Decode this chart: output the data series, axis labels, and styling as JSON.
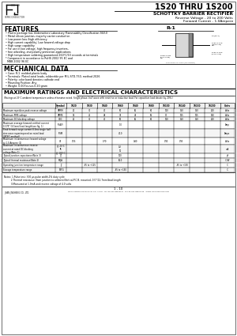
{
  "title": "1S20 THRU 1S200",
  "subtitle": "SCHOTTKY BARRIER RECTIFIER",
  "subtitle2": "Reverse Voltage - 20 to 200 Volts",
  "subtitle3": "Forward Current - 1.0Ampere",
  "logo_text": "SEMICONDUCTOR",
  "features_title": "FEATURES",
  "features": [
    "Plastic package has Underwriters Laboratory Flammability Classification 94V-0",
    "Metal silicon junction, majority carrier conduction",
    "Low power loss /high efficiency",
    "High current capability; Low forward voltage drop",
    "High surge capability",
    "For use in low voltage; high frequency inverters,",
    "free wheeling, and polarity protection applications",
    "High temperature soldering guaranteed 260°C/10 seconds at terminals",
    "* Component in accordance to RoHS 2002 95 EC and",
    "MBB 2002 96 EC"
  ],
  "mech_title": "MECHANICAL DATA",
  "mech": [
    "Case: R-1  molded plastic body",
    "Terminals: Plated axial leads, solderable per MIL-STD-750, method 2026",
    "Polarity: color band denotes cathode end",
    "Mounting Position: Any",
    "Weight: 0.007ounce,0.20 gram"
  ],
  "max_title": "MAXIMUM RATINGS AND ELECTRICAL CHARACTERISTICS",
  "max_note": "(Ratings at 25°C ambient temperature unless otherwise noted. Single phase, half wave with resistive or inductive load. For capacitive load derate by 20%.)",
  "table_headers": [
    "",
    "Symbol",
    "1S20",
    "1S30",
    "1S40",
    "1S60",
    "1S40",
    "1S80",
    "1S100",
    "1S140",
    "1S150",
    "1S200",
    "Units"
  ],
  "notes": [
    "Notes: 1.Pulse test: 300 μs pulse width,1% duty cycle",
    "          2.Thermal resistance (from junction to ambient)Vertical P.C.B. mounted, 0.5\"(12.7mm)lead length",
    "          3.Measured at 1.0mA and reverse voltage of 4.0 volts"
  ],
  "footer": "1 - 10",
  "company": "JINAN JINGHENG CO., LTD.",
  "address": "NO.51 HEPING ROAD JINAN, P.R. CHINA  TEL:86-531-88863657  FAX:86-531-88867098   WWW.JRFUSEMICON.COM",
  "bg_color": "#ffffff"
}
